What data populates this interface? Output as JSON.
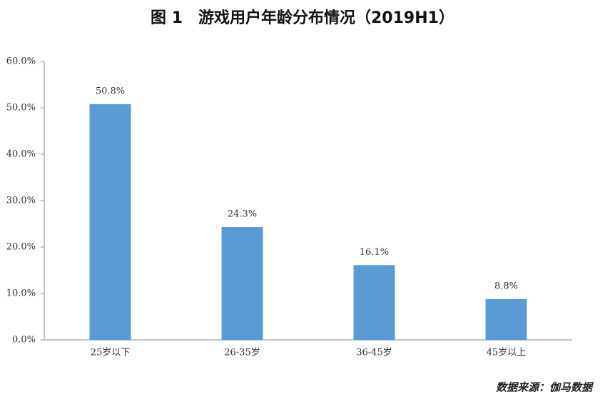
{
  "chart_data": {
    "type": "bar",
    "title": "图 1　游戏用户年龄分布情况（2019H1）",
    "categories": [
      "25岁以下",
      "26-35岁",
      "36-45岁",
      "45岁以上"
    ],
    "values": [
      50.8,
      24.3,
      16.1,
      8.8
    ],
    "value_labels": [
      "50.8%",
      "24.3%",
      "16.1%",
      "8.8%"
    ],
    "color": "#5b9bd5",
    "ylim": [
      0,
      60
    ],
    "yticks": [
      {
        "value": 0,
        "label": "0.0%"
      },
      {
        "value": 10,
        "label": "10.0%"
      },
      {
        "value": 20,
        "label": "20.0%"
      },
      {
        "value": 30,
        "label": "30.0%"
      },
      {
        "value": 40,
        "label": "40.0%"
      },
      {
        "value": 50,
        "label": "50.0%"
      },
      {
        "value": 60,
        "label": "60.0%"
      }
    ],
    "grid": false,
    "source": "数据来源：伽马数据"
  }
}
